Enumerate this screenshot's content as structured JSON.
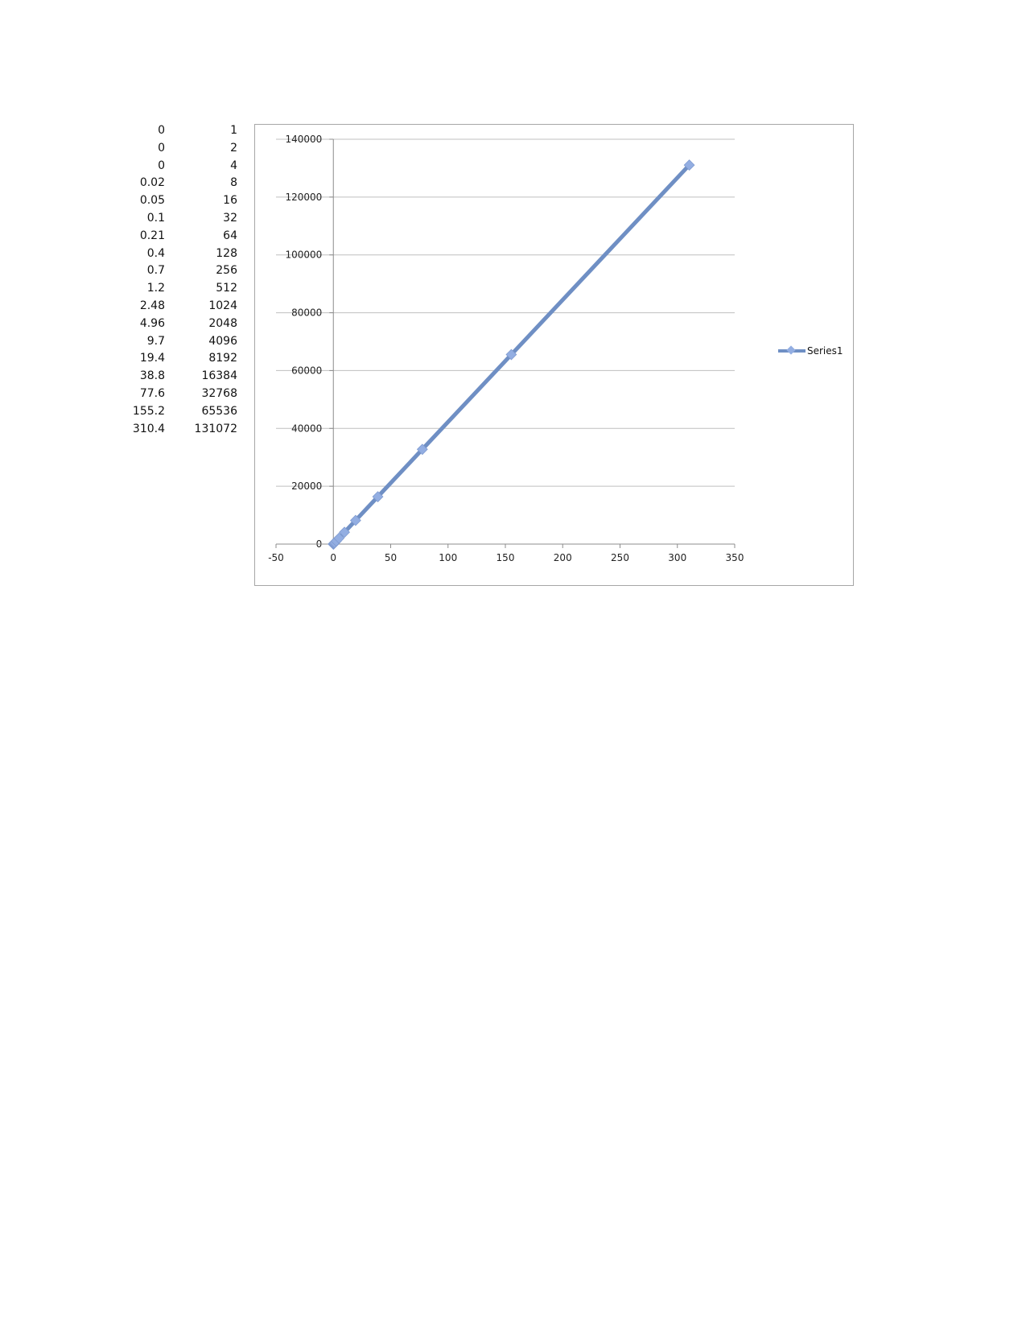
{
  "table": {
    "rows": [
      {
        "x": "0",
        "y": "1"
      },
      {
        "x": "0",
        "y": "2"
      },
      {
        "x": "0",
        "y": "4"
      },
      {
        "x": "0.02",
        "y": "8"
      },
      {
        "x": "0.05",
        "y": "16"
      },
      {
        "x": "0.1",
        "y": "32"
      },
      {
        "x": "0.21",
        "y": "64"
      },
      {
        "x": "0.4",
        "y": "128"
      },
      {
        "x": "0.7",
        "y": "256"
      },
      {
        "x": "1.2",
        "y": "512"
      },
      {
        "x": "2.48",
        "y": "1024"
      },
      {
        "x": "4.96",
        "y": "2048"
      },
      {
        "x": "9.7",
        "y": "4096"
      },
      {
        "x": "19.4",
        "y": "8192"
      },
      {
        "x": "38.8",
        "y": "16384"
      },
      {
        "x": "77.6",
        "y": "32768"
      },
      {
        "x": "155.2",
        "y": "65536"
      },
      {
        "x": "310.4",
        "y": "131072"
      }
    ]
  },
  "chart_data": {
    "type": "scatter",
    "title": "",
    "xlabel": "",
    "ylabel": "",
    "xlim": [
      -50,
      350
    ],
    "ylim": [
      0,
      140000
    ],
    "x_ticks": [
      -50,
      0,
      50,
      100,
      150,
      200,
      250,
      300,
      350
    ],
    "y_ticks": [
      0,
      20000,
      40000,
      60000,
      80000,
      100000,
      120000,
      140000
    ],
    "grid": "horizontal",
    "legend_position": "right",
    "line_color": "#6f8fc4",
    "marker_color": "#93aee2",
    "series": [
      {
        "name": "Series1",
        "x": [
          0,
          0,
          0,
          0.02,
          0.05,
          0.1,
          0.21,
          0.4,
          0.7,
          1.2,
          2.48,
          4.96,
          9.7,
          19.4,
          38.8,
          77.6,
          155.2,
          310.4
        ],
        "y": [
          1,
          2,
          4,
          8,
          16,
          32,
          64,
          128,
          256,
          512,
          1024,
          2048,
          4096,
          8192,
          16384,
          32768,
          65536,
          131072
        ]
      }
    ]
  }
}
